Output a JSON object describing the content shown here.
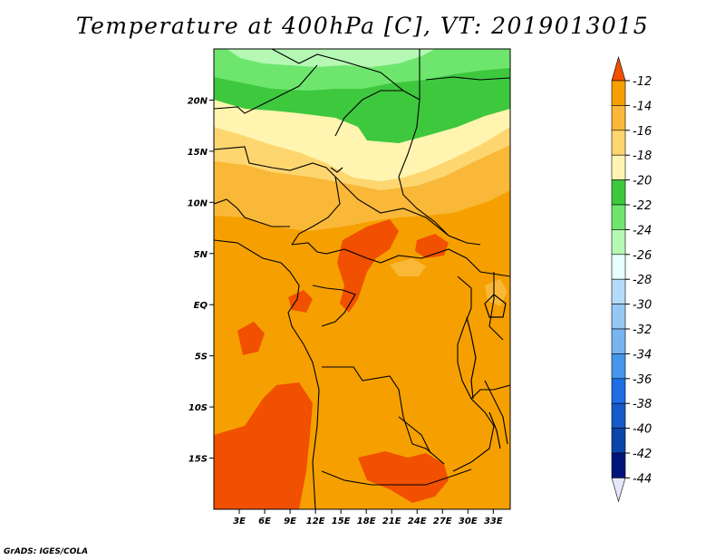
{
  "title": "Temperature at 400hPa [C], VT: 2019013015",
  "credit": "GrADS: IGES/COLA",
  "map": {
    "lon_range": [
      0,
      35
    ],
    "lat_range": [
      -20,
      25
    ],
    "lat_ticks": [
      {
        "value": 20,
        "label": "20N"
      },
      {
        "value": 15,
        "label": "15N"
      },
      {
        "value": 10,
        "label": "10N"
      },
      {
        "value": 5,
        "label": "5N"
      },
      {
        "value": 0,
        "label": "EQ"
      },
      {
        "value": -5,
        "label": "5S"
      },
      {
        "value": -10,
        "label": "10S"
      },
      {
        "value": -15,
        "label": "15S"
      }
    ],
    "lon_ticks": [
      {
        "value": 3,
        "label": "3E"
      },
      {
        "value": 6,
        "label": "6E"
      },
      {
        "value": 9,
        "label": "9E"
      },
      {
        "value": 12,
        "label": "12E"
      },
      {
        "value": 15,
        "label": "15E"
      },
      {
        "value": 18,
        "label": "18E"
      },
      {
        "value": 21,
        "label": "21E"
      },
      {
        "value": 24,
        "label": "24E"
      },
      {
        "value": 27,
        "label": "27E"
      },
      {
        "value": 30,
        "label": "30E"
      },
      {
        "value": 33,
        "label": "33E"
      }
    ]
  },
  "colorbar": {
    "levels": [
      {
        "label": "-12",
        "color": "#f05000"
      },
      {
        "label": "-14",
        "color": "#f5a000"
      },
      {
        "label": "-16",
        "color": "#f9b838"
      },
      {
        "label": "-18",
        "color": "#fdd670"
      },
      {
        "label": "-20",
        "color": "#fff5b0"
      },
      {
        "label": "-22",
        "color": "#3ec83e"
      },
      {
        "label": "-24",
        "color": "#6ee66e"
      },
      {
        "label": "-26",
        "color": "#b4f8b4"
      },
      {
        "label": "-28",
        "color": "#e6ffff"
      },
      {
        "label": "-30",
        "color": "#b4dcfa"
      },
      {
        "label": "-32",
        "color": "#96c8f5"
      },
      {
        "label": "-34",
        "color": "#78b4f0"
      },
      {
        "label": "-36",
        "color": "#4696eb"
      },
      {
        "label": "-38",
        "color": "#1e6ee6"
      },
      {
        "label": "-40",
        "color": "#145ac8"
      },
      {
        "label": "-42",
        "color": "#0a46aa"
      },
      {
        "label": "-44",
        "color": "#00147a"
      }
    ],
    "over_color": "#f05000",
    "under_color": "#e6e6fa"
  }
}
